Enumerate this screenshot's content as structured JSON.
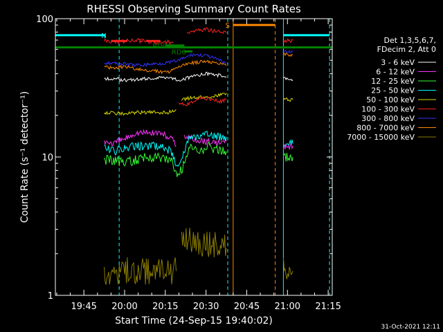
{
  "chart_data": {
    "type": "line",
    "title": "RHESSI Observing Summary Count Rates",
    "xlabel": "Start Time (24-Sep-15 19:40:02)",
    "ylabel": "Count Rate (s⁻¹ detector⁻¹)",
    "y_scale": "log",
    "ylim": [
      1,
      100
    ],
    "xlim_minutes": [
      -5.5,
      96.5
    ],
    "yticks": [
      {
        "label": "100",
        "value": 100
      },
      {
        "label": "10",
        "value": 10
      },
      {
        "label": "1",
        "value": 1
      }
    ],
    "xticks": [
      {
        "label": "19:45",
        "t": 5
      },
      {
        "label": "20:00",
        "t": 20
      },
      {
        "label": "20:15",
        "t": 35
      },
      {
        "label": "20:30",
        "t": 50
      },
      {
        "label": "20:45",
        "t": 65
      },
      {
        "label": "21:00",
        "t": 80
      },
      {
        "label": "21:15",
        "t": 95
      }
    ],
    "legend_header": [
      "Det 1,3,5,6,7,",
      "FDecim 2, Att 0"
    ],
    "legend_position": "right",
    "series": [
      {
        "name": "3 - 6 keV",
        "color": "#ffffff",
        "segments": [
          {
            "x": [
              12.5,
              21,
              30,
              36,
              40,
              45,
              50,
              55,
              57.5
            ],
            "y": [
              37,
              36,
              37,
              38,
              36,
              38,
              40,
              39,
              38
            ]
          },
          {
            "x": [
              78.5,
              82
            ],
            "y": [
              37,
              36
            ]
          }
        ]
      },
      {
        "name": "6 - 12 keV",
        "color": "#ff33ff",
        "segments": [
          {
            "x": [
              12.5,
              16,
              20,
              24,
              28,
              33,
              36,
              38,
              39
            ],
            "y": [
              13,
              12.5,
              13.5,
              15,
              15,
              15,
              14,
              13,
              12
            ]
          },
          {
            "x": [
              42,
              45,
              50,
              55,
              57.5
            ],
            "y": [
              14,
              13.5,
              13,
              12.5,
              13
            ]
          },
          {
            "x": [
              78.5,
              82
            ],
            "y": [
              12,
              12
            ]
          }
        ]
      },
      {
        "name": "12 - 25 keV",
        "color": "#33ff33",
        "segments": [
          {
            "x": [
              12.5,
              16,
              20,
              24,
              28,
              33,
              37,
              39,
              41,
              44,
              47,
              51,
              55,
              57.5
            ],
            "y": [
              9.5,
              9.5,
              9,
              9.5,
              10,
              10,
              9.5,
              7.5,
              8,
              12,
              11,
              12,
              11,
              11
            ]
          },
          {
            "x": [
              78.5,
              82
            ],
            "y": [
              10,
              10
            ]
          }
        ]
      },
      {
        "name": "25 - 50 keV",
        "color": "#00ffff",
        "segments": [
          {
            "x": [
              12.5,
              16,
              20,
              24,
              28,
              33,
              37,
              39,
              41,
              44,
              47,
              51,
              55,
              57.5
            ],
            "y": [
              11.5,
              11,
              11.5,
              12,
              12,
              12,
              11,
              9,
              9.5,
              14,
              14,
              14.5,
              14,
              14
            ]
          },
          {
            "x": [
              78.5,
              82
            ],
            "y": [
              12.5,
              12.5
            ]
          }
        ]
      },
      {
        "name": "50 - 100 keV",
        "color": "#dddd00",
        "segments": [
          {
            "x": [
              12.5,
              20,
              25,
              30,
              36,
              39
            ],
            "y": [
              21,
              20.5,
              21,
              21,
              21,
              22
            ]
          },
          {
            "x": [
              41,
              45,
              50,
              55,
              57.5
            ],
            "y": [
              26,
              27,
              27,
              28,
              29
            ]
          },
          {
            "x": [
              78.5,
              82
            ],
            "y": [
              26,
              26
            ]
          }
        ]
      },
      {
        "name": "100 - 300 keV",
        "color": "#ff2222",
        "segments": [
          {
            "x": [
              12.5,
              16,
              20,
              25,
              30,
              35,
              38
            ],
            "y": [
              70,
              68,
              69,
              70,
              68,
              68,
              67
            ]
          },
          {
            "x": [
              40,
              43,
              46,
              49,
              52,
              55,
              57.5
            ],
            "y": [
              25,
              24,
              26,
              27,
              26,
              25,
              26
            ]
          },
          {
            "x": [
              43,
              46,
              50,
              55,
              57.5
            ],
            "y": [
              80,
              82,
              84,
              80,
              79
            ]
          },
          {
            "x": [
              78.5,
              82
            ],
            "y": [
              68,
              70
            ]
          }
        ]
      },
      {
        "name": "300 - 800 keV",
        "color": "#3333ff",
        "segments": [
          {
            "x": [
              12.5,
              20,
              25,
              30,
              36,
              40,
              45,
              50,
              55,
              57.5
            ],
            "y": [
              48,
              47,
              46,
              47,
              48,
              50,
              55,
              54,
              50,
              47
            ]
          },
          {
            "x": [
              78.5,
              82
            ],
            "y": [
              58,
              58
            ]
          }
        ]
      },
      {
        "name": "800 - 7000 keV",
        "color": "#ff8800",
        "segments": [
          {
            "x": [
              12.5,
              16,
              20,
              25,
              30,
              36,
              40,
              45,
              50,
              55,
              57.5
            ],
            "y": [
              45,
              44,
              45,
              43,
              42,
              41,
              45,
              48,
              49,
              47,
              46
            ]
          },
          {
            "x": [
              78.5,
              82
            ],
            "y": [
              55,
              55
            ]
          }
        ]
      },
      {
        "name": "7000 - 15000 keV",
        "color": "#8b7d00",
        "segments": [
          {
            "x": [
              12.5,
              20,
              30,
              39
            ],
            "y": [
              1.5,
              1.5,
              1.5,
              1.5
            ]
          },
          {
            "x": [
              41,
              45,
              50,
              55,
              57.5
            ],
            "y": [
              2.5,
              2.5,
              2.3,
              2.4,
              2.2
            ]
          },
          {
            "x": [
              78.5,
              82
            ],
            "y": [
              1.5,
              1.5
            ]
          }
        ]
      }
    ],
    "flag_bars": [
      {
        "label": "N",
        "color": "#00ffff",
        "y": 76,
        "segments": [
          [
            -5.5,
            13
          ],
          [
            78.5,
            95.5
          ]
        ]
      },
      {
        "label": "F",
        "color": "#ff2222",
        "y": 69,
        "segments": [
          [
            28,
            33
          ],
          [
            15,
            21
          ]
        ]
      },
      {
        "label": "RD9",
        "color": "#008000",
        "y": 64,
        "segments": [
          [
            35,
            42
          ]
        ]
      },
      {
        "label": "RD6",
        "color": "#008000",
        "y": 58,
        "segments": [
          [
            42,
            45
          ]
        ]
      },
      {
        "label": "S",
        "color": "#ff8800",
        "y": 90,
        "segments": [
          [
            60,
            75.5
          ]
        ]
      }
    ],
    "reference_line": {
      "color": "#008000",
      "y": 62
    },
    "vertical_markers": [
      {
        "t": -5.5,
        "color": "#00ffff",
        "style": "solid"
      },
      {
        "t": 18,
        "color": "#00ffff",
        "style": "dashed"
      },
      {
        "t": 58,
        "color": "#00ffff",
        "style": "dashed"
      },
      {
        "t": 78.5,
        "color": "#00ffff",
        "style": "solid"
      },
      {
        "t": 95.5,
        "color": "#00ffff",
        "style": "dashed"
      },
      {
        "t": 60,
        "color": "#ff8800",
        "style": "solid"
      },
      {
        "t": 75.5,
        "color": "#ff8800",
        "style": "dashed"
      }
    ],
    "footer_date": "31-Oct-2021 12:11"
  }
}
